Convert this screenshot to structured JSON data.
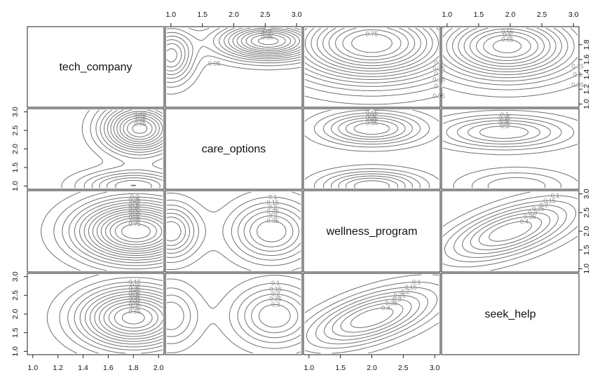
{
  "chart_data": {
    "type": "contour-pairs",
    "variables": [
      "tech_company",
      "care_options",
      "wellness_program",
      "seek_help"
    ],
    "ranges": {
      "tech_company": [
        1.0,
        2.0
      ],
      "care_options": [
        1.0,
        3.0
      ],
      "wellness_program": [
        1.0,
        3.0
      ],
      "seek_help": [
        1.0,
        3.0
      ]
    },
    "axes": {
      "top_labels": [
        {
          "var": "care_options",
          "ticks": [
            1.0,
            1.5,
            2.0,
            2.5,
            3.0
          ],
          "labels": [
            "1.0",
            "1.5",
            "2.0",
            "2.5",
            "3.0"
          ]
        },
        {
          "var": "seek_help",
          "ticks": [
            1.0,
            1.5,
            2.0,
            2.5,
            3.0
          ],
          "labels": [
            "1.0",
            "1.5",
            "2.0",
            "2.5",
            "3.0"
          ]
        }
      ],
      "bottom_labels": [
        {
          "var": "tech_company",
          "ticks": [
            1.0,
            1.2,
            1.4,
            1.6,
            1.8,
            2.0
          ],
          "labels": [
            "1.0",
            "1.2",
            "1.4",
            "1.6",
            "1.8",
            "2.0"
          ]
        },
        {
          "var": "wellness_program",
          "ticks": [
            1.0,
            1.5,
            2.0,
            2.5,
            3.0
          ],
          "labels": [
            "1.0",
            "1.5",
            "2.0",
            "2.5",
            "3.0"
          ]
        }
      ],
      "left_labels": [
        {
          "var": "care_options",
          "ticks": [
            1.0,
            1.5,
            2.0,
            2.5,
            3.0
          ],
          "labels": [
            "1.0",
            "1.5",
            "2.0",
            "2.5",
            "3.0"
          ]
        },
        {
          "var": "seek_help",
          "ticks": [
            1.0,
            1.5,
            2.0,
            2.5,
            3.0
          ],
          "labels": [
            "1.0",
            "1.5",
            "2.0",
            "2.5",
            "3.0"
          ]
        }
      ],
      "right_labels": [
        {
          "var": "tech_company",
          "ticks": [
            1.0,
            1.2,
            1.4,
            1.6,
            1.8
          ],
          "labels": [
            "1.0",
            "1.2",
            "1.4",
            "1.6",
            "1.8"
          ]
        },
        {
          "var": "wellness_program",
          "ticks": [
            1.0,
            1.5,
            2.0,
            2.5,
            3.0
          ],
          "labels": [
            "1.0",
            "1.5",
            "2.0",
            "2.5",
            "3.0"
          ]
        }
      ]
    },
    "panels": [
      {
        "row": 0,
        "col": 1,
        "peaks": [
          {
            "x": 2.55,
            "y": 1.85,
            "amp": 0.68,
            "sx": 0.55,
            "sy": 0.17,
            "rho": 0
          },
          {
            "x": 1.0,
            "y": 1.65,
            "amp": 0.42,
            "sx": 0.25,
            "sy": 0.25,
            "rho": 0
          }
        ]
      },
      {
        "row": 0,
        "col": 2,
        "peaks": [
          {
            "x": 2.0,
            "y": 1.82,
            "amp": 0.8,
            "sx": 0.9,
            "sy": 0.35,
            "rho": 0
          }
        ]
      },
      {
        "row": 0,
        "col": 3,
        "peaks": [
          {
            "x": 1.95,
            "y": 1.78,
            "amp": 0.68,
            "sx": 0.75,
            "sy": 0.3,
            "rho": 0
          }
        ]
      },
      {
        "row": 1,
        "col": 0,
        "peaks": [
          {
            "x": 1.85,
            "y": 2.55,
            "amp": 0.68,
            "sx": 0.2,
            "sy": 0.45,
            "rho": 0
          },
          {
            "x": 1.8,
            "y": 1.0,
            "amp": 0.4,
            "sx": 0.28,
            "sy": 0.28,
            "rho": 0
          }
        ]
      },
      {
        "row": 1,
        "col": 2,
        "peaks": [
          {
            "x": 2.0,
            "y": 2.55,
            "amp": 0.4,
            "sx": 0.55,
            "sy": 0.3,
            "rho": 0
          },
          {
            "x": 2.0,
            "y": 1.0,
            "amp": 0.4,
            "sx": 0.55,
            "sy": 0.28,
            "rho": 0
          }
        ]
      },
      {
        "row": 1,
        "col": 3,
        "peaks": [
          {
            "x": 1.9,
            "y": 2.45,
            "amp": 0.35,
            "sx": 0.7,
            "sy": 0.3,
            "rho": 0
          },
          {
            "x": 2.1,
            "y": 1.0,
            "amp": 0.2,
            "sx": 0.6,
            "sy": 0.3,
            "rho": 0
          }
        ]
      },
      {
        "row": 2,
        "col": 0,
        "peaks": [
          {
            "x": 1.82,
            "y": 2.0,
            "amp": 0.8,
            "sx": 0.32,
            "sy": 0.55,
            "rho": 0
          }
        ]
      },
      {
        "row": 2,
        "col": 1,
        "peaks": [
          {
            "x": 2.6,
            "y": 2.0,
            "amp": 0.4,
            "sx": 0.45,
            "sy": 0.55,
            "rho": 0
          },
          {
            "x": 1.0,
            "y": 2.0,
            "amp": 0.4,
            "sx": 0.3,
            "sy": 0.5,
            "rho": 0
          }
        ]
      },
      {
        "row": 2,
        "col": 3,
        "peaks": [
          {
            "x": 2.0,
            "y": 2.0,
            "amp": 0.45,
            "sx": 0.7,
            "sy": 0.55,
            "rho": 0.6
          }
        ]
      },
      {
        "row": 3,
        "col": 0,
        "peaks": [
          {
            "x": 1.8,
            "y": 1.9,
            "amp": 0.68,
            "sx": 0.3,
            "sy": 0.55,
            "rho": 0
          }
        ]
      },
      {
        "row": 3,
        "col": 1,
        "peaks": [
          {
            "x": 2.65,
            "y": 1.95,
            "amp": 0.35,
            "sx": 0.45,
            "sy": 0.55,
            "rho": 0
          },
          {
            "x": 1.0,
            "y": 1.95,
            "amp": 0.25,
            "sx": 0.3,
            "sy": 0.55,
            "rho": 0
          }
        ]
      },
      {
        "row": 3,
        "col": 2,
        "peaks": [
          {
            "x": 2.0,
            "y": 1.9,
            "amp": 0.45,
            "sx": 0.7,
            "sy": 0.55,
            "rho": 0.6
          }
        ]
      }
    ],
    "contour_levels": [
      0.05,
      0.1,
      0.15,
      0.2,
      0.25,
      0.3,
      0.35,
      0.4,
      0.45,
      0.5,
      0.55,
      0.6,
      0.65,
      0.7,
      0.75
    ],
    "grid": false,
    "legend": "none"
  }
}
